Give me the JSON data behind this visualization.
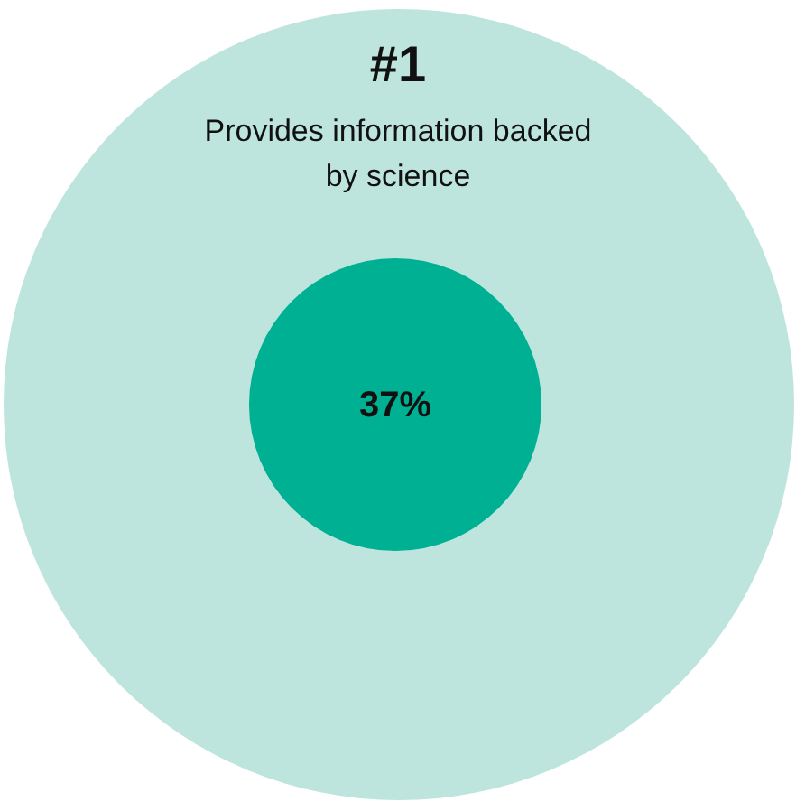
{
  "chart_data": {
    "type": "other",
    "title": "#1",
    "subtitle": "Provides information backed by science",
    "categories": [
      null
    ],
    "values": [
      37
    ],
    "value_labels": [
      "37%"
    ],
    "colors": [
      "#00b092"
    ]
  }
}
